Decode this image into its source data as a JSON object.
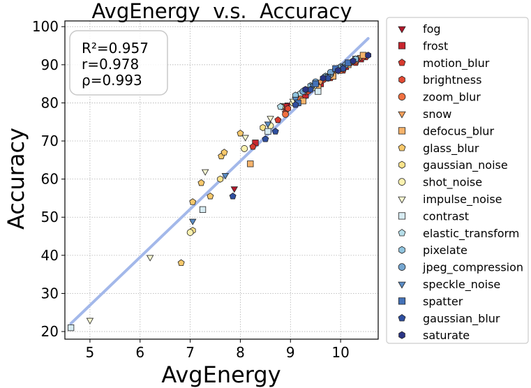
{
  "chart_data": {
    "type": "scatter",
    "title": "AvgEnergy  v.s.  Accuracy",
    "xlabel": "AvgEnergy",
    "ylabel": "Accuracy",
    "xlim": [
      4.5,
      10.75
    ],
    "ylim": [
      18,
      101.5
    ],
    "xticks": [
      5,
      6,
      7,
      8,
      9,
      10
    ],
    "yticks": [
      20,
      30,
      40,
      50,
      60,
      70,
      80,
      90,
      100
    ],
    "grid": true,
    "legend_position": "outside-right",
    "stats": [
      "R²=0.957",
      "r=0.978",
      "ρ=0.993"
    ],
    "fit_line": {
      "x": [
        4.62,
        10.55
      ],
      "y": [
        22.1,
        96.9
      ],
      "color": "#a3b8ea"
    },
    "series": [
      {
        "name": "fog",
        "marker": "triangle-down",
        "color": "#b2182b",
        "x": [
          7.88,
          8.95,
          9.25,
          9.45,
          9.7,
          9.95,
          10.2,
          10.5
        ],
        "y": [
          57.5,
          79.5,
          82.5,
          84.5,
          86.5,
          88.5,
          90.5,
          92.5
        ]
      },
      {
        "name": "frost",
        "marker": "square",
        "color": "#c8252e",
        "x": [
          8.3,
          8.9,
          9.3,
          9.6,
          9.85,
          10.1,
          10.4
        ],
        "y": [
          69.5,
          79,
          82,
          85,
          87,
          89.5,
          91.5
        ]
      },
      {
        "name": "motion_blur",
        "marker": "pentagon",
        "color": "#d73a2e",
        "x": [
          8.25,
          8.75,
          8.9,
          9.2,
          9.55,
          9.8,
          10.05,
          10.3,
          10.5
        ],
        "y": [
          68.5,
          75.5,
          77.5,
          81,
          84,
          86.5,
          88.5,
          90.5,
          92
        ]
      },
      {
        "name": "brightness",
        "marker": "hexagon",
        "color": "#e34a33",
        "x": [
          8.95,
          9.35,
          9.65,
          9.95,
          10.2,
          10.45
        ],
        "y": [
          78.5,
          83,
          86,
          88.5,
          90.5,
          92
        ]
      },
      {
        "name": "zoom_blur",
        "marker": "circle",
        "color": "#f07040",
        "x": [
          8.9,
          9.2,
          9.5,
          9.75,
          10.0,
          10.3
        ],
        "y": [
          77,
          81,
          84,
          86.5,
          88.5,
          91
        ]
      },
      {
        "name": "snow",
        "marker": "triangle-down",
        "color": "#f4a05a",
        "x": [
          9.3,
          9.6,
          9.9,
          10.2,
          10.4
        ],
        "y": [
          83,
          85.5,
          88.5,
          90.5,
          92
        ]
      },
      {
        "name": "defocus_blur",
        "marker": "square",
        "color": "#f6b36b",
        "x": [
          8.2,
          9.25,
          9.55,
          9.85,
          10.15,
          10.45
        ],
        "y": [
          64,
          80.5,
          84,
          87,
          90,
          92.5
        ]
      },
      {
        "name": "glass_blur",
        "marker": "pentagon",
        "color": "#f7c86b",
        "x": [
          6.82,
          7.05,
          7.22,
          7.4,
          7.62,
          7.68,
          8.0
        ],
        "y": [
          38,
          54,
          59,
          55.5,
          66,
          67,
          72
        ]
      },
      {
        "name": "gaussian_noise",
        "marker": "hexagon",
        "color": "#fbe38a",
        "x": [
          7.05,
          7.6,
          8.45,
          8.82,
          9.3,
          9.7
        ],
        "y": [
          46.5,
          60,
          73.5,
          79,
          83.5,
          87
        ]
      },
      {
        "name": "shot_noise",
        "marker": "circle",
        "color": "#fbf2b0",
        "x": [
          7.0,
          8.08,
          8.6,
          9.05,
          9.45,
          9.8
        ],
        "y": [
          46,
          68,
          74,
          80,
          84,
          87.5
        ]
      },
      {
        "name": "impulse_noise",
        "marker": "triangle-down",
        "color": "#fafbd2",
        "x": [
          5.0,
          6.2,
          7.3,
          8.1,
          8.6,
          9.05,
          9.5
        ],
        "y": [
          23,
          39.5,
          62,
          71,
          76,
          80.5,
          84.5
        ]
      },
      {
        "name": "contrast",
        "marker": "square",
        "color": "#d8ecf3",
        "x": [
          4.62,
          7.25,
          8.55,
          9.55,
          10.0,
          10.3
        ],
        "y": [
          21,
          52,
          72.5,
          83,
          89,
          91.5
        ]
      },
      {
        "name": "elastic_transform",
        "marker": "pentagon",
        "color": "#b5dde8",
        "x": [
          8.8,
          9.2,
          9.5,
          9.8,
          10.1
        ],
        "y": [
          79,
          82.5,
          85,
          87.5,
          90
        ]
      },
      {
        "name": "pixelate",
        "marker": "hexagon",
        "color": "#90c4de",
        "x": [
          9.1,
          9.4,
          9.7,
          10.0,
          10.3
        ],
        "y": [
          82,
          84.5,
          87,
          89.5,
          91.5
        ]
      },
      {
        "name": "jpeg_compression",
        "marker": "circle",
        "color": "#75a6d0",
        "x": [
          9.25,
          9.5,
          9.8,
          10.1
        ],
        "y": [
          83,
          85.5,
          88,
          90
        ]
      },
      {
        "name": "speckle_noise",
        "marker": "triangle-down",
        "color": "#5a8cc5",
        "x": [
          7.05,
          7.7,
          8.55,
          9.1,
          9.45,
          9.75,
          10.05
        ],
        "y": [
          49,
          61,
          74.5,
          81,
          84.5,
          87,
          89.5
        ]
      },
      {
        "name": "spatter",
        "marker": "square",
        "color": "#4472b8",
        "x": [
          9.15,
          9.5,
          9.9,
          10.15
        ],
        "y": [
          80,
          85,
          89,
          90.5
        ]
      },
      {
        "name": "gaussian_blur",
        "marker": "pentagon",
        "color": "#2f4fa0",
        "x": [
          7.85,
          8.5,
          8.7,
          9.1,
          9.4,
          9.75,
          10.05
        ],
        "y": [
          55.5,
          70.5,
          72.5,
          79.5,
          83.5,
          86.5,
          89
        ]
      },
      {
        "name": "saturate",
        "marker": "hexagon",
        "color": "#2a3585",
        "x": [
          9.3,
          9.65,
          9.95,
          10.25,
          10.55
        ],
        "y": [
          83.5,
          86.5,
          88.5,
          91,
          92.5
        ]
      }
    ]
  }
}
